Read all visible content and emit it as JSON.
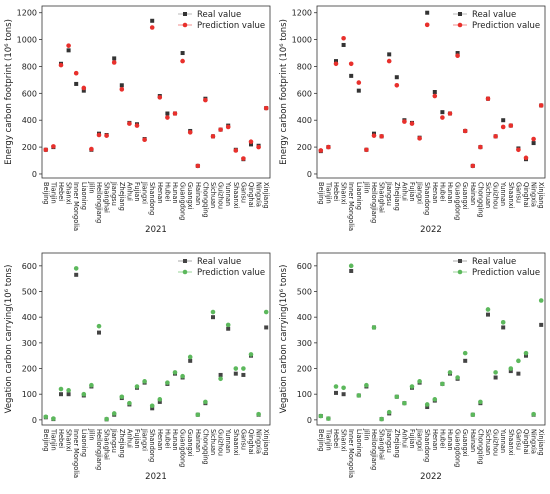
{
  "chart_data": [
    {
      "type": "line",
      "ylabel": "Energy carbon footprint (10⁶ tons)",
      "xlabel": "2021",
      "categories": [
        "Beijing",
        "Tianjin",
        "Hebei",
        "Shanxi",
        "Inner Mongolia",
        "Liaoning",
        "Jilin",
        "Heilongjiang",
        "Shanghai",
        "Jiangsu",
        "Zhejiang",
        "Anhui",
        "Fujian",
        "Jiangxi",
        "Shandong",
        "Henan",
        "Hubei",
        "Hunan",
        "Guangdong",
        "Guangxi",
        "Hainan",
        "Chongqing",
        "Sichuan",
        "Guizhou",
        "Yunnan",
        "Shaanxi",
        "Gansu",
        "Qinghai",
        "Ningxia",
        "Xinjiang"
      ],
      "series": [
        {
          "name": "Real value",
          "color": "#333333",
          "line_color": "#b0b0b0",
          "marker": "square",
          "values": [
            180,
            200,
            820,
            920,
            670,
            620,
            180,
            300,
            290,
            860,
            660,
            380,
            370,
            260,
            1140,
            580,
            450,
            450,
            900,
            320,
            60,
            560,
            280,
            330,
            360,
            180,
            110,
            220,
            210,
            490
          ]
        },
        {
          "name": "Prediction value",
          "color": "#e8302c",
          "line_color": "#f08080",
          "marker": "circle",
          "values": [
            180,
            205,
            810,
            955,
            750,
            640,
            185,
            290,
            285,
            830,
            630,
            375,
            360,
            255,
            1090,
            570,
            420,
            450,
            840,
            310,
            60,
            550,
            280,
            330,
            350,
            175,
            115,
            240,
            200,
            490
          ]
        }
      ],
      "ylim": [
        -30,
        1250
      ],
      "yticks": [
        0,
        200,
        400,
        600,
        800,
        1000,
        1200
      ],
      "legend": "upper right"
    },
    {
      "type": "line",
      "ylabel": "Energy carbon footprint (10⁶ tons)",
      "xlabel": "2022",
      "categories": [
        "Beijing",
        "Tianjin",
        "Hebei",
        "Shanxi",
        "Inner Mongolia",
        "Liaoning",
        "Jilin",
        "Heilongjiang",
        "Shanghai",
        "Jiangsu",
        "Zhejiang",
        "Anhui",
        "Fujian",
        "Jiangxi",
        "Shandong",
        "Henan",
        "Hubei",
        "Hunan",
        "Guangdong",
        "Guangxi",
        "Hainan",
        "Chongqing",
        "Sichuan",
        "Guizhou",
        "Yunnan",
        "Shaanxi",
        "Gansu",
        "Qinghai",
        "Ningxia",
        "Xinjiang"
      ],
      "series": [
        {
          "name": "Real value",
          "color": "#333333",
          "line_color": "#b0b0b0",
          "marker": "square",
          "values": [
            170,
            200,
            840,
            960,
            730,
            620,
            180,
            300,
            280,
            890,
            720,
            400,
            380,
            270,
            1200,
            610,
            460,
            450,
            900,
            320,
            60,
            200,
            560,
            280,
            400,
            360,
            190,
            110,
            230,
            510
          ]
        },
        {
          "name": "Prediction value",
          "color": "#e8302c",
          "line_color": "#f08080",
          "marker": "circle",
          "values": [
            175,
            200,
            820,
            1010,
            820,
            680,
            180,
            285,
            280,
            840,
            660,
            390,
            375,
            265,
            1110,
            580,
            420,
            450,
            880,
            320,
            60,
            200,
            560,
            280,
            350,
            360,
            180,
            120,
            260,
            510
          ]
        }
      ],
      "ylim": [
        -30,
        1250
      ],
      "yticks": [
        0,
        200,
        400,
        600,
        800,
        1000,
        1200
      ],
      "legend": "upper right"
    },
    {
      "type": "line",
      "ylabel": "Vegation carbon carrying(10⁶ tons)",
      "xlabel": "2021",
      "categories": [
        "Beijing",
        "Tianjin",
        "Hebei",
        "Shanxi",
        "Inner Mongolia",
        "Liaoning",
        "Jilin",
        "Heilongjiang",
        "Shanghai",
        "Jiangsu",
        "Zhejiang",
        "Anhui",
        "Fujian",
        "Jiangxi",
        "Shandong",
        "Henan",
        "Hubei",
        "Hunan",
        "Guangdong",
        "Guangxi",
        "Hainan",
        "Chongqing",
        "Sichuan",
        "Guizhou",
        "Yunnan",
        "Shaanxi",
        "Gansu",
        "Qinghai",
        "Ningxia",
        "Xinjiang"
      ],
      "series": [
        {
          "name": "Real value",
          "color": "#444444",
          "line_color": "#a0a0a0",
          "marker": "square",
          "values": [
            10,
            3,
            100,
            100,
            565,
            95,
            130,
            340,
            2,
            20,
            85,
            60,
            125,
            145,
            45,
            70,
            140,
            180,
            165,
            230,
            20,
            65,
            400,
            175,
            355,
            180,
            175,
            250,
            20,
            360
          ]
        },
        {
          "name": "Prediction value",
          "color": "#5cb85c",
          "line_color": "#8fd18f",
          "marker": "circle",
          "values": [
            12,
            5,
            120,
            115,
            590,
            100,
            135,
            365,
            3,
            25,
            90,
            65,
            130,
            150,
            55,
            80,
            145,
            185,
            170,
            245,
            20,
            70,
            420,
            160,
            370,
            200,
            200,
            255,
            22,
            420
          ]
        }
      ],
      "ylim": [
        -20,
        650
      ],
      "yticks": [
        0,
        100,
        200,
        300,
        400,
        500,
        600
      ],
      "legend": "upper right"
    },
    {
      "type": "line",
      "ylabel": "Vegation carbon carrying(10⁶ tons)",
      "xlabel": "2022",
      "categories": [
        "Beijing",
        "Tianjin",
        "Hebei",
        "Shanxi",
        "Inner Mongolia",
        "Liaoning",
        "Jilin",
        "Heilongjiang",
        "Shanghai",
        "Jiangsu",
        "Zhejiang",
        "Anhui",
        "Fujian",
        "Jiangxi",
        "Shandong",
        "Henan",
        "Hubei",
        "Hunan",
        "Guangdong",
        "Guangxi",
        "Hainan",
        "Chongqing",
        "Sichuan",
        "Guizhou",
        "Yunnan",
        "Shaanxi",
        "Gansu",
        "Qinghai",
        "Ningxia",
        "Xinjiang"
      ],
      "series": [
        {
          "name": "Real value",
          "color": "#444444",
          "line_color": "#a0a0a0",
          "marker": "square",
          "values": [
            15,
            5,
            105,
            100,
            580,
            95,
            130,
            360,
            3,
            25,
            90,
            65,
            125,
            145,
            50,
            75,
            140,
            180,
            160,
            230,
            20,
            65,
            410,
            165,
            360,
            190,
            180,
            250,
            20,
            370
          ]
        },
        {
          "name": "Prediction value",
          "color": "#5cb85c",
          "line_color": "#8fd18f",
          "marker": "circle",
          "values": [
            15,
            5,
            130,
            125,
            600,
            95,
            135,
            360,
            3,
            30,
            90,
            65,
            130,
            150,
            60,
            80,
            140,
            185,
            165,
            260,
            20,
            70,
            430,
            185,
            380,
            200,
            230,
            260,
            22,
            465
          ]
        }
      ],
      "ylim": [
        -20,
        650
      ],
      "yticks": [
        0,
        100,
        200,
        300,
        400,
        500,
        600
      ],
      "legend": "upper right"
    }
  ]
}
